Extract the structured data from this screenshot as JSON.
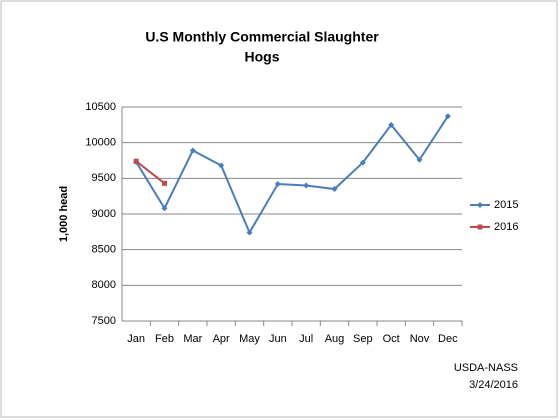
{
  "chart_data": {
    "type": "line",
    "title": "U.S Monthly Commercial Slaughter",
    "subtitle": "Hogs",
    "y_label": "1,000 head",
    "categories": [
      "Jan",
      "Feb",
      "Mar",
      "Apr",
      "May",
      "Jun",
      "Jul",
      "Aug",
      "Sep",
      "Oct",
      "Nov",
      "Dec"
    ],
    "series": [
      {
        "name": "2015",
        "color": "#4a7ebb",
        "marker": "diamond",
        "values": [
          9730,
          9080,
          9890,
          9680,
          8740,
          9420,
          9400,
          9350,
          9720,
          10250,
          9760,
          10370
        ]
      },
      {
        "name": "2016",
        "color": "#be4b48",
        "marker": "square",
        "values": [
          9740,
          9430,
          null,
          null,
          null,
          null,
          null,
          null,
          null,
          null,
          null,
          null
        ]
      }
    ],
    "ylim": [
      7500,
      10500
    ],
    "yticks": [
      7500,
      8000,
      8500,
      9000,
      9500,
      10000,
      10500
    ],
    "grid": true,
    "legend": "right",
    "annotations": [
      "USDA-NASS",
      "3/24/2016"
    ]
  }
}
